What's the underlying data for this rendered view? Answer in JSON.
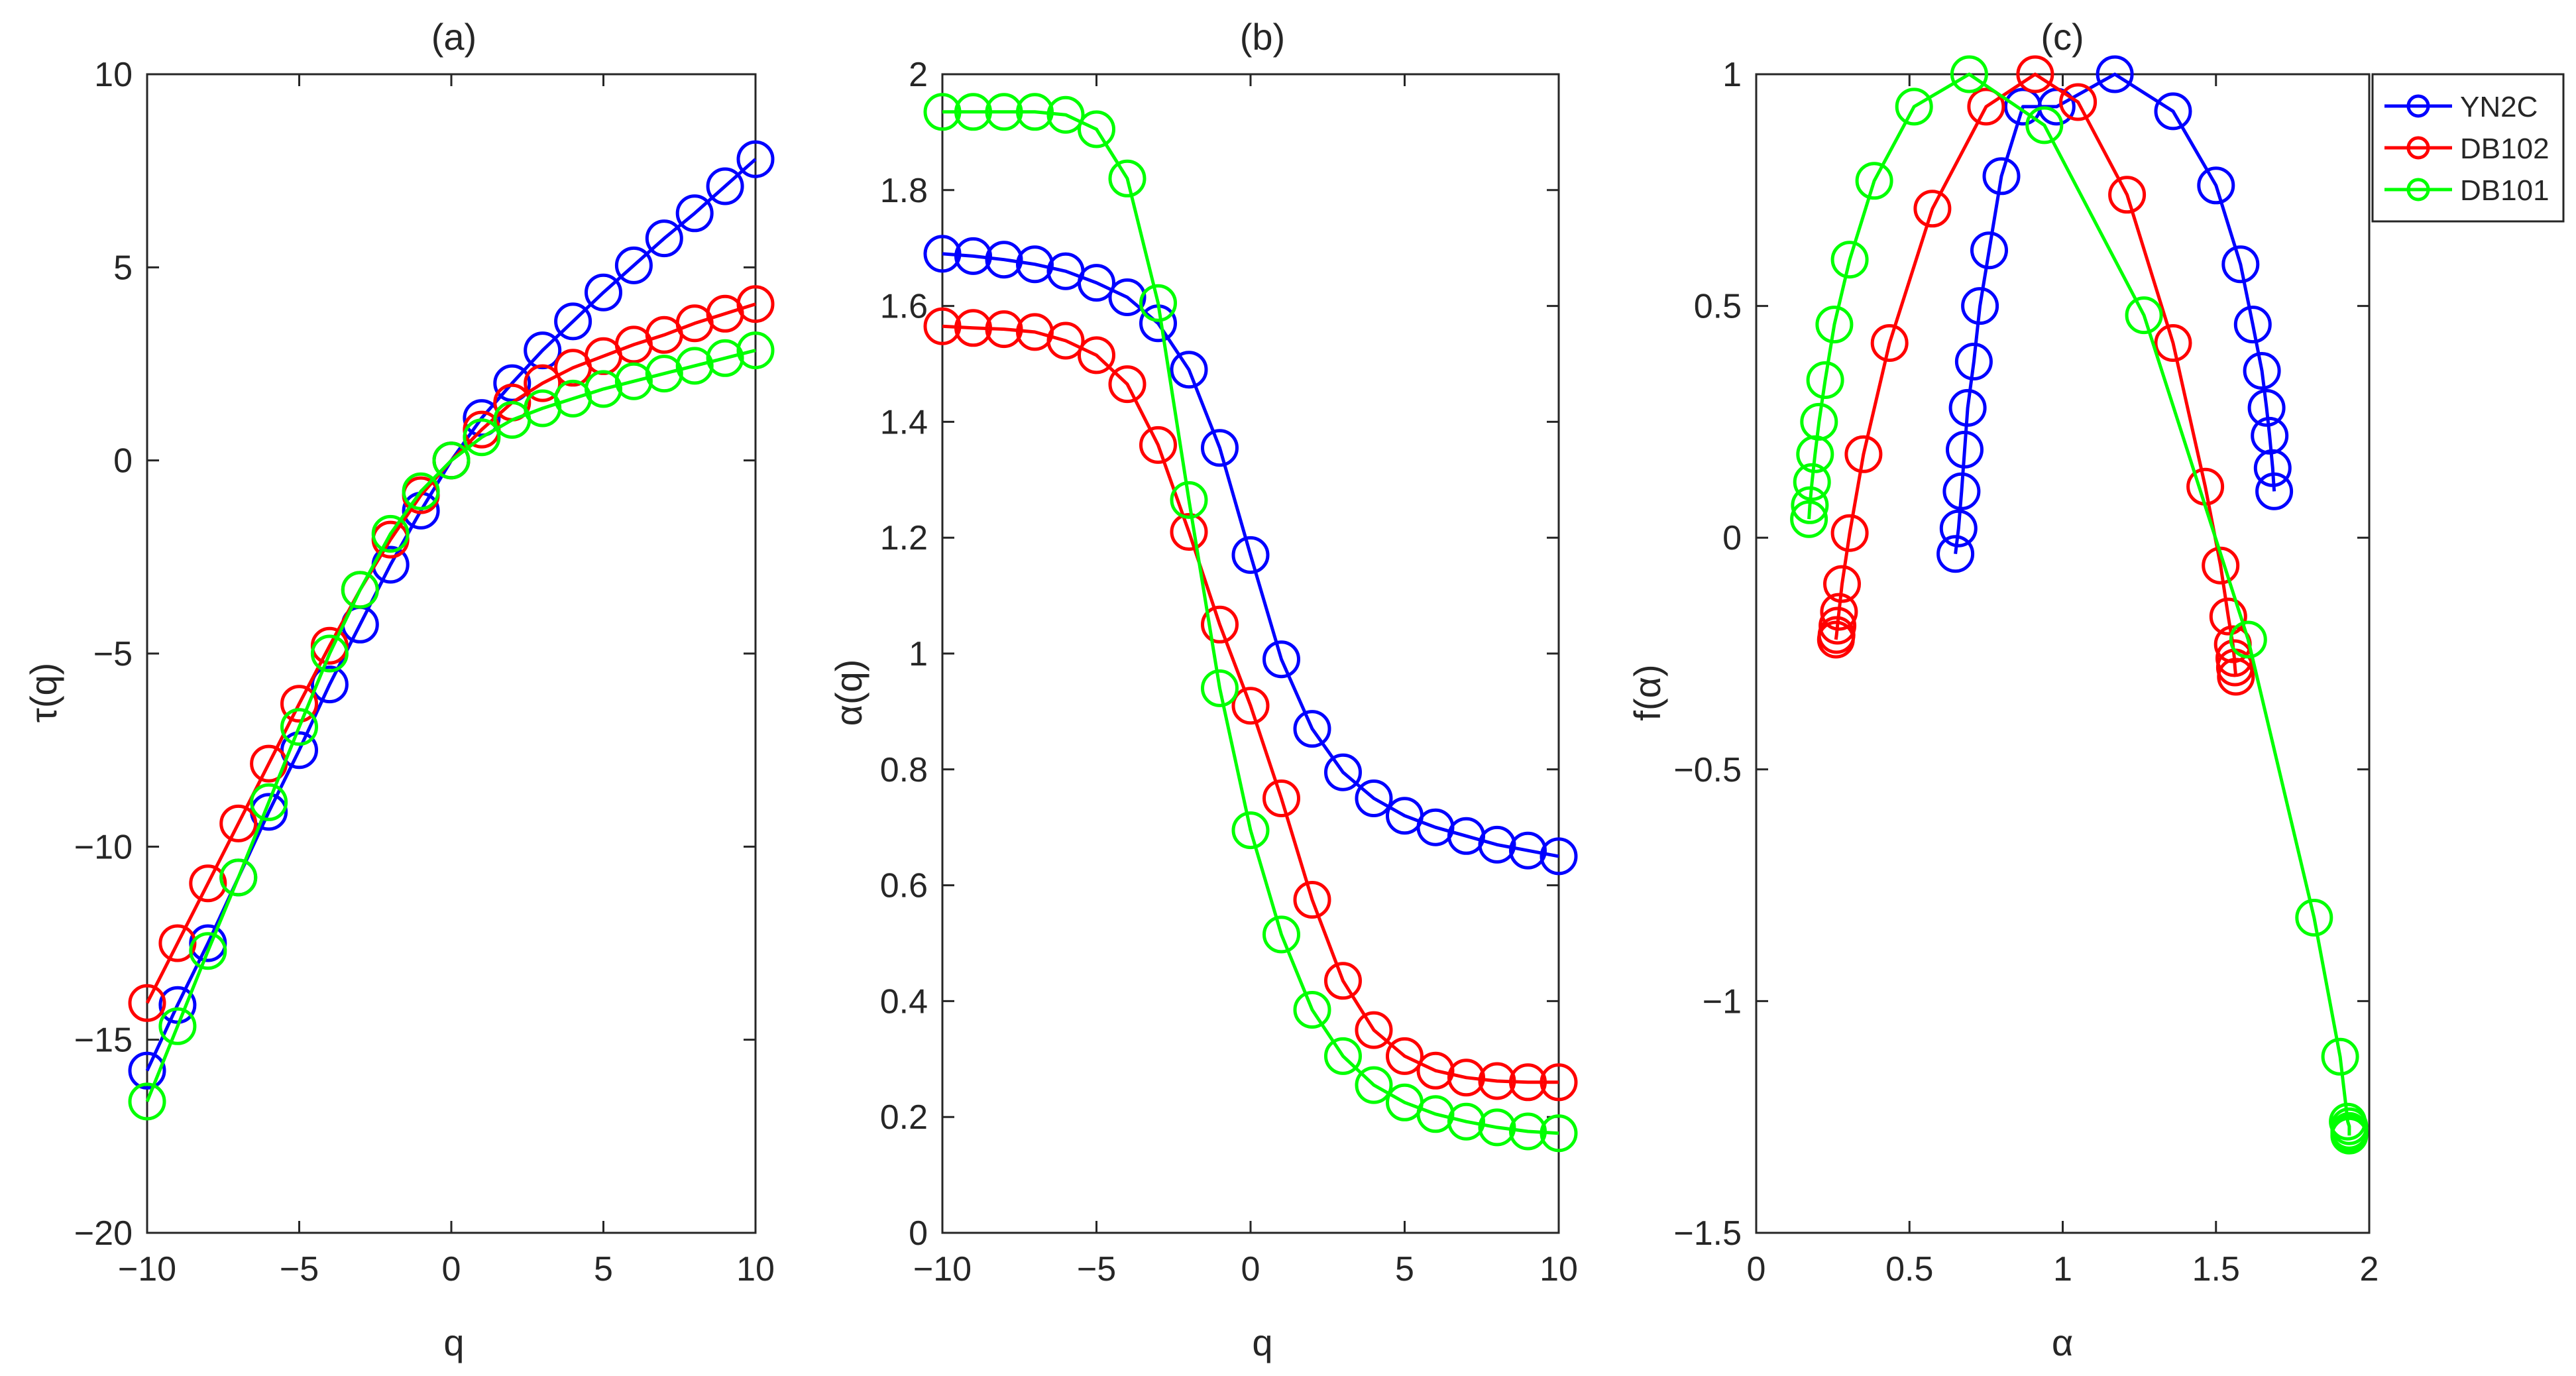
{
  "chart_data": [
    {
      "type": "line",
      "title": "(a)",
      "xlabel": "q",
      "ylabel": "τ(q)",
      "xlim": [
        -10,
        10
      ],
      "ylim": [
        -20,
        10
      ],
      "xticks": [
        -10,
        -5,
        0,
        5,
        10
      ],
      "xtick_labels": [
        "−10",
        "−5",
        "0",
        "5",
        "10"
      ],
      "yticks": [
        -20,
        -15,
        -10,
        -5,
        0,
        5,
        10
      ],
      "ytick_labels": [
        "−20",
        "−15",
        "−10",
        "−5",
        "0",
        "5",
        "10"
      ],
      "series": [
        {
          "name": "YN2C",
          "color": "#0000ff",
          "x": [
            -10,
            -9,
            -8,
            -7,
            -6,
            -5,
            -4,
            -3,
            -2,
            -1,
            0,
            1,
            2,
            3,
            4,
            5,
            6,
            7,
            8,
            9,
            10
          ],
          "y": [
            -15.8,
            -14.1,
            -12.5,
            -10.8,
            -9.1,
            -7.5,
            -5.8,
            -4.25,
            -2.7,
            -1.3,
            0,
            1.1,
            2.0,
            2.85,
            3.6,
            4.35,
            5.05,
            5.75,
            6.4,
            7.1,
            7.8
          ]
        },
        {
          "name": "DB102",
          "color": "#ff0000",
          "x": [
            -10,
            -9,
            -8,
            -7,
            -6,
            -5,
            -4,
            -3,
            -2,
            -1,
            0,
            1,
            2,
            3,
            4,
            5,
            6,
            7,
            8,
            9,
            10
          ],
          "y": [
            -14.05,
            -12.5,
            -10.95,
            -9.4,
            -7.85,
            -6.3,
            -4.8,
            -3.35,
            -2.05,
            -0.9,
            0,
            0.8,
            1.5,
            2.0,
            2.4,
            2.7,
            3.0,
            3.25,
            3.55,
            3.8,
            4.05
          ]
        },
        {
          "name": "DB101",
          "color": "#00ff00",
          "x": [
            -10,
            -9,
            -8,
            -7,
            -6,
            -5,
            -4,
            -3,
            -2,
            -1,
            0,
            1,
            2,
            3,
            4,
            5,
            6,
            7,
            8,
            9,
            10
          ],
          "y": [
            -16.6,
            -14.65,
            -12.7,
            -10.8,
            -8.85,
            -6.9,
            -5.0,
            -3.35,
            -1.9,
            -0.8,
            0,
            0.6,
            1.05,
            1.35,
            1.6,
            1.85,
            2.05,
            2.25,
            2.45,
            2.65,
            2.85
          ]
        }
      ]
    },
    {
      "type": "line",
      "title": "(b)",
      "xlabel": "q",
      "ylabel": "α(q)",
      "xlim": [
        -10,
        10
      ],
      "ylim": [
        0,
        2
      ],
      "xticks": [
        -10,
        -5,
        0,
        5,
        10
      ],
      "xtick_labels": [
        "−10",
        "−5",
        "0",
        "5",
        "10"
      ],
      "yticks": [
        0,
        0.2,
        0.4,
        0.6,
        0.8,
        1,
        1.2,
        1.4,
        1.6,
        1.8,
        2
      ],
      "ytick_labels": [
        "0",
        "0.2",
        "0.4",
        "0.6",
        "0.8",
        "1",
        "1.2",
        "1.4",
        "1.6",
        "1.8",
        "2"
      ],
      "series": [
        {
          "name": "YN2C",
          "color": "#0000ff",
          "x": [
            -10,
            -9,
            -8,
            -7,
            -6,
            -5,
            -4,
            -3,
            -2,
            -1,
            0,
            1,
            2,
            3,
            4,
            5,
            6,
            7,
            8,
            9,
            10
          ],
          "y": [
            1.69,
            1.686,
            1.68,
            1.672,
            1.66,
            1.64,
            1.615,
            1.57,
            1.49,
            1.355,
            1.17,
            0.99,
            0.87,
            0.795,
            0.75,
            0.72,
            0.7,
            0.685,
            0.67,
            0.66,
            0.65
          ]
        },
        {
          "name": "DB102",
          "color": "#ff0000",
          "x": [
            -10,
            -9,
            -8,
            -7,
            -6,
            -5,
            -4,
            -3,
            -2,
            -1,
            0,
            1,
            2,
            3,
            4,
            5,
            6,
            7,
            8,
            9,
            10
          ],
          "y": [
            1.565,
            1.562,
            1.56,
            1.555,
            1.54,
            1.515,
            1.465,
            1.36,
            1.21,
            1.05,
            0.91,
            0.75,
            0.575,
            0.435,
            0.35,
            0.305,
            0.28,
            0.268,
            0.262,
            0.26,
            0.26
          ]
        },
        {
          "name": "DB101",
          "color": "#00ff00",
          "x": [
            -10,
            -9,
            -8,
            -7,
            -6,
            -5,
            -4,
            -3,
            -2,
            -1,
            0,
            1,
            2,
            3,
            4,
            5,
            6,
            7,
            8,
            9,
            10
          ],
          "y": [
            1.935,
            1.935,
            1.935,
            1.935,
            1.93,
            1.905,
            1.82,
            1.605,
            1.265,
            0.94,
            0.695,
            0.515,
            0.385,
            0.305,
            0.255,
            0.225,
            0.205,
            0.192,
            0.182,
            0.175,
            0.172
          ]
        }
      ]
    },
    {
      "type": "line",
      "title": "(c)",
      "xlabel": "α",
      "ylabel": "f(α)",
      "xlim": [
        0,
        2
      ],
      "ylim": [
        -1.5,
        1
      ],
      "xticks": [
        0,
        0.5,
        1,
        1.5,
        2
      ],
      "xtick_labels": [
        "0",
        "0.5",
        "1",
        "1.5",
        "2"
      ],
      "yticks": [
        -1.5,
        -1,
        -0.5,
        0,
        0.5,
        1
      ],
      "ytick_labels": [
        "−1.5",
        "−1",
        "−0.5",
        "0",
        "0.5",
        "1"
      ],
      "legend_position": "outside-top-right",
      "series": [
        {
          "name": "YN2C",
          "color": "#0000ff",
          "x": [
            0.65,
            0.66,
            0.67,
            0.68,
            0.69,
            0.71,
            0.73,
            0.76,
            0.8,
            0.87,
            0.98,
            1.17,
            1.36,
            1.5,
            1.58,
            1.62,
            1.65,
            1.665,
            1.675,
            1.685,
            1.69
          ],
          "y": [
            -0.035,
            0.02,
            0.1,
            0.19,
            0.28,
            0.38,
            0.5,
            0.62,
            0.78,
            0.93,
            0.93,
            1.0,
            0.92,
            0.76,
            0.59,
            0.46,
            0.36,
            0.28,
            0.22,
            0.15,
            0.1
          ]
        },
        {
          "name": "DB102",
          "color": "#ff0000",
          "x": [
            0.26,
            0.262,
            0.265,
            0.27,
            0.28,
            0.305,
            0.35,
            0.435,
            0.575,
            0.75,
            0.91,
            1.05,
            1.21,
            1.36,
            1.465,
            1.515,
            1.54,
            1.555,
            1.56,
            1.562,
            1.565
          ],
          "y": [
            -0.22,
            -0.21,
            -0.19,
            -0.16,
            -0.1,
            0.01,
            0.18,
            0.42,
            0.71,
            0.93,
            1.0,
            0.94,
            0.74,
            0.42,
            0.11,
            -0.06,
            -0.17,
            -0.23,
            -0.26,
            -0.28,
            -0.3
          ]
        },
        {
          "name": "DB101",
          "color": "#00ff00",
          "x": [
            0.172,
            0.175,
            0.182,
            0.192,
            0.205,
            0.225,
            0.255,
            0.305,
            0.385,
            0.515,
            0.695,
            0.94,
            1.265,
            1.605,
            1.82,
            1.905,
            1.93,
            1.935,
            1.935,
            1.935,
            1.935
          ],
          "y": [
            0.04,
            0.07,
            0.12,
            0.18,
            0.25,
            0.34,
            0.46,
            0.6,
            0.77,
            0.93,
            1.0,
            0.89,
            0.48,
            -0.22,
            -0.82,
            -1.12,
            -1.26,
            -1.27,
            -1.28,
            -1.285,
            -1.29
          ]
        }
      ]
    }
  ],
  "legend": [
    {
      "label": "YN2C",
      "color": "#0000ff"
    },
    {
      "label": "DB102",
      "color": "#ff0000"
    },
    {
      "label": "DB101",
      "color": "#00ff00"
    }
  ]
}
